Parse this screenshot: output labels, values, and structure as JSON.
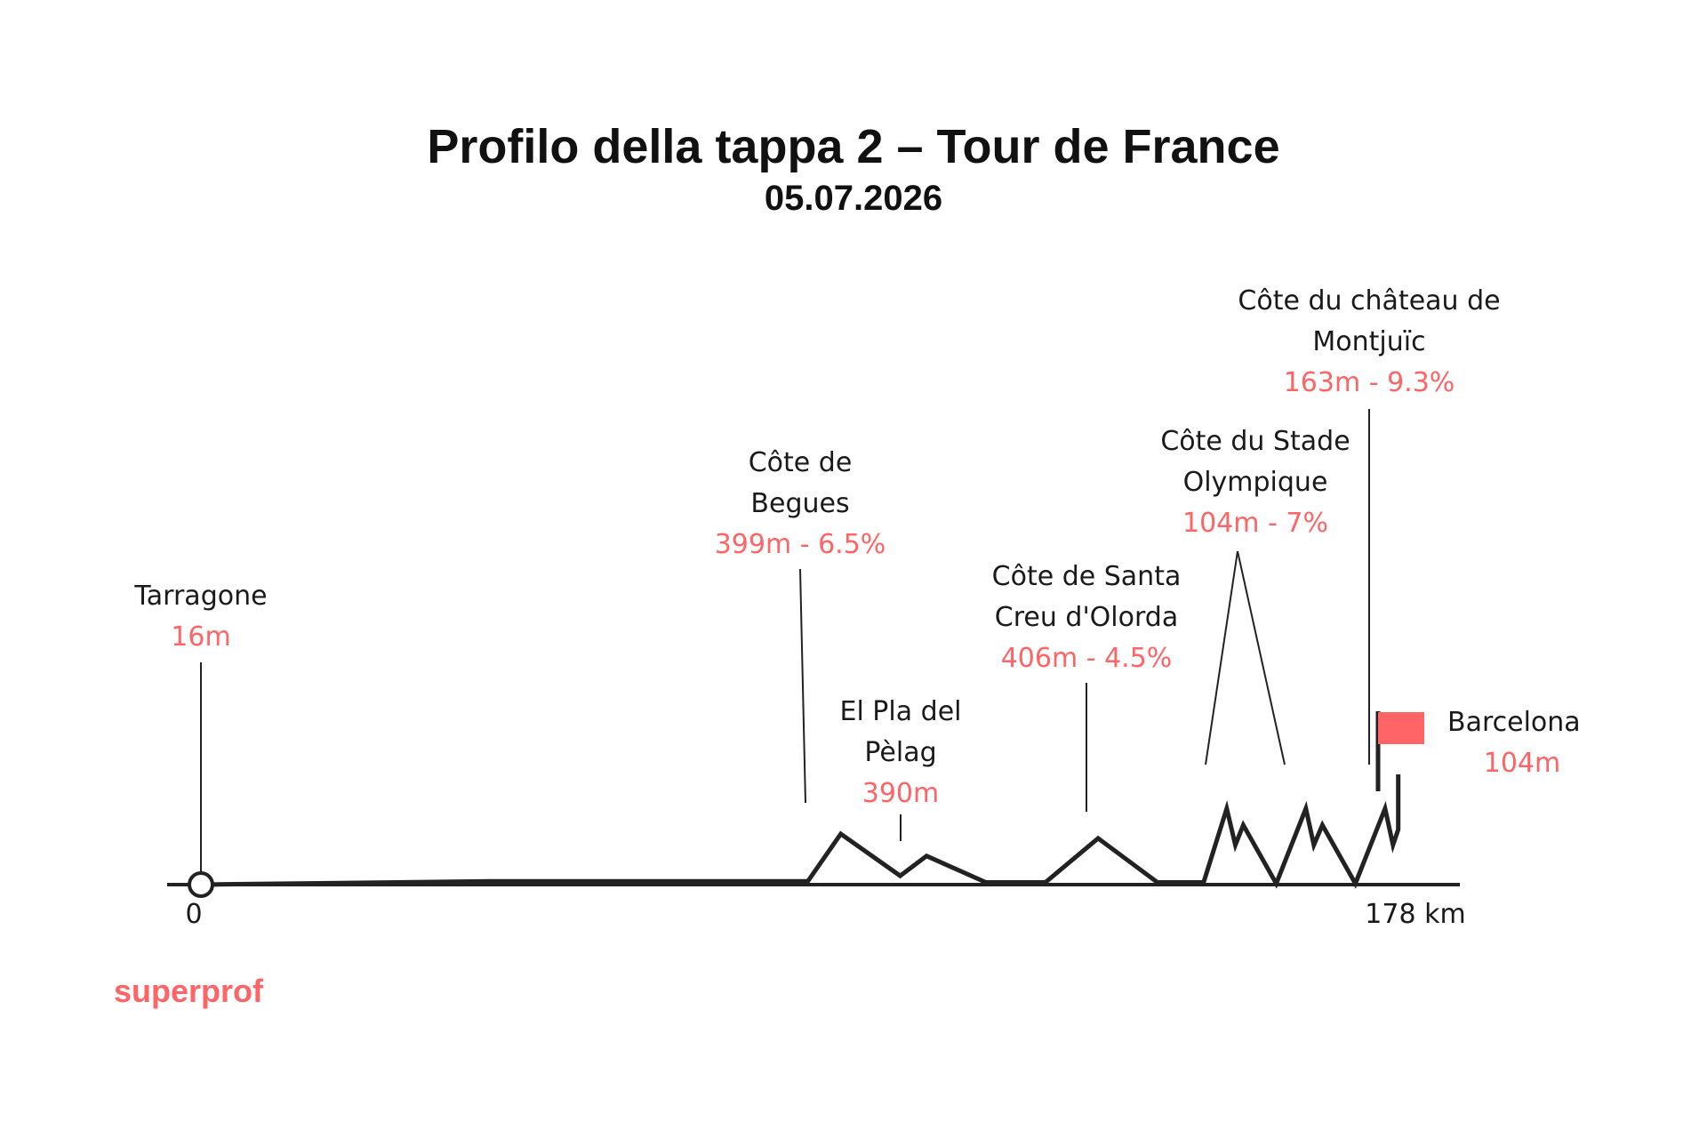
{
  "title": "Profilo della tappa 2 – Tour de France",
  "subtitle": "05.07.2026",
  "brand": "superprof",
  "colors": {
    "accent": "#ff6466",
    "line": "#222222",
    "text": "#1a1a1a"
  },
  "chart_data": {
    "type": "line",
    "x_start_label": "0",
    "x_end_label": "178 km",
    "xlim": [
      0,
      178
    ],
    "profile": [
      [
        0,
        0.0
      ],
      [
        44,
        0.06
      ],
      [
        92,
        0.06
      ],
      [
        97,
        0.92
      ],
      [
        106,
        0.16
      ],
      [
        110,
        0.52
      ],
      [
        119,
        0.04
      ],
      [
        128,
        0.04
      ],
      [
        136,
        0.84
      ],
      [
        145,
        0.04
      ],
      [
        152,
        0.04
      ],
      [
        155.5,
        1.38
      ],
      [
        156.8,
        0.72
      ],
      [
        158,
        1.08
      ],
      [
        163,
        0.02
      ],
      [
        167.5,
        1.38
      ],
      [
        168.7,
        0.72
      ],
      [
        170,
        1.08
      ],
      [
        175,
        0.02
      ],
      [
        179.5,
        1.38
      ],
      [
        180.7,
        0.72
      ],
      [
        181.5,
        1.0
      ],
      [
        181.5,
        2.0
      ]
    ],
    "annotations": [
      {
        "name": "Tarragone",
        "lines": [
          "Tarragone"
        ],
        "value": "16m",
        "x": 0
      },
      {
        "name": "Côte de Begues",
        "lines": [
          "Côte de",
          "Begues"
        ],
        "value": "399m - 6.5%",
        "x": 97
      },
      {
        "name": "El Pla del Pèlag",
        "lines": [
          "El Pla del",
          "Pèlag"
        ],
        "value": "390m",
        "x": 110
      },
      {
        "name": "Côte de Santa Creu d'Olorda",
        "lines": [
          "Côte de Santa",
          "Creu d'Olorda"
        ],
        "value": "406m - 4.5%",
        "x": 136
      },
      {
        "name": "Côte du Stade Olympique",
        "lines": [
          "Côte du Stade",
          "Olympique"
        ],
        "value": "104m - 7%",
        "x": 161
      },
      {
        "name": "Côte du château de Montjuïc",
        "lines": [
          "Côte du château de",
          "Montjuïc"
        ],
        "value": "163m - 9.3%",
        "x": 179.5
      },
      {
        "name": "Barcelona",
        "lines": [
          "Barcelona"
        ],
        "value": "104m",
        "x": 181.5
      }
    ]
  }
}
